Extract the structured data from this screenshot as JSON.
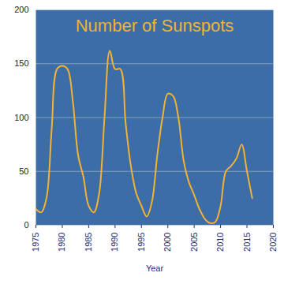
{
  "chart_data": {
    "type": "line",
    "title": "Number of Sunspots",
    "x_label": "Year",
    "x": [
      1975,
      1976,
      1977,
      1978,
      1979,
      1980,
      1981,
      1982,
      1983,
      1984,
      1985,
      1986,
      1987,
      1988,
      1989,
      1990,
      1991,
      1992,
      1993,
      1994,
      1995,
      1996,
      1997,
      1998,
      1999,
      2000,
      2001,
      2002,
      2003,
      2004,
      2005,
      2006,
      2007,
      2008,
      2009,
      2010,
      2011,
      2012,
      2013,
      2014,
      2015,
      2016
    ],
    "values": [
      15,
      12,
      25,
      90,
      145,
      148,
      145,
      115,
      65,
      45,
      18,
      12,
      30,
      100,
      162,
      145,
      145,
      95,
      55,
      30,
      18,
      8,
      22,
      65,
      100,
      122,
      120,
      100,
      60,
      40,
      28,
      15,
      6,
      2,
      3,
      18,
      50,
      55,
      62,
      75,
      50,
      25
    ],
    "color": "#f2b233",
    "xlim": [
      1975,
      2020
    ],
    "xticks": [
      1975,
      1980,
      1985,
      1990,
      1995,
      2000,
      2005,
      2010,
      2015,
      2020
    ],
    "ylim": [
      0,
      200
    ],
    "yticks": [
      0,
      50,
      100,
      150,
      200
    ],
    "grid": true
  }
}
